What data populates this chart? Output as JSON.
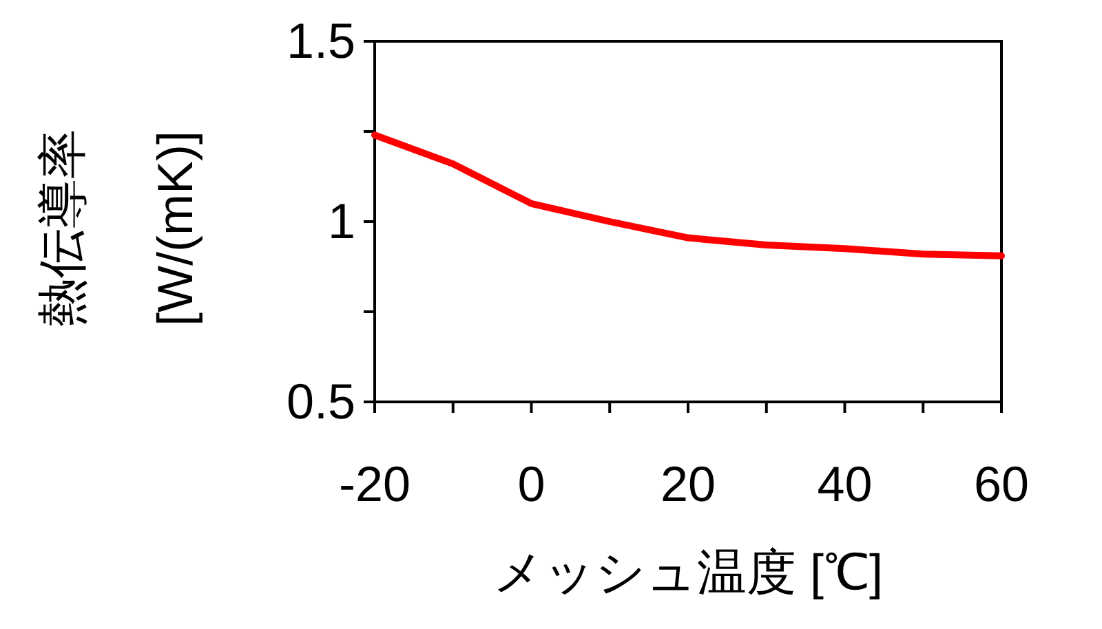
{
  "chart_data": {
    "type": "line",
    "xlabel": "メッシュ温度 [℃]",
    "ylabel": "熱伝導率\n[W/(mK)]",
    "x": [
      -20,
      -10,
      0,
      10,
      20,
      30,
      40,
      50,
      60
    ],
    "series": [
      {
        "color": "#ff0000",
        "values": [
          1.24,
          1.16,
          1.05,
          1.0,
          0.955,
          0.935,
          0.925,
          0.91,
          0.905
        ]
      }
    ],
    "xlim": [
      -20,
      60
    ],
    "xticks": [
      -20,
      {
        "value": -10,
        "label": null
      },
      0,
      {
        "value": 10,
        "label": null
      },
      20,
      {
        "value": 30,
        "label": null
      },
      40,
      {
        "value": 50,
        "label": null
      },
      60
    ],
    "ylim": [
      0.5,
      1.5
    ],
    "yticks": [
      0.5,
      {
        "value": 0.75,
        "label": null
      },
      1,
      {
        "value": 1.25,
        "label": null
      },
      1.5
    ],
    "marker": "none",
    "line_style": "solid"
  }
}
